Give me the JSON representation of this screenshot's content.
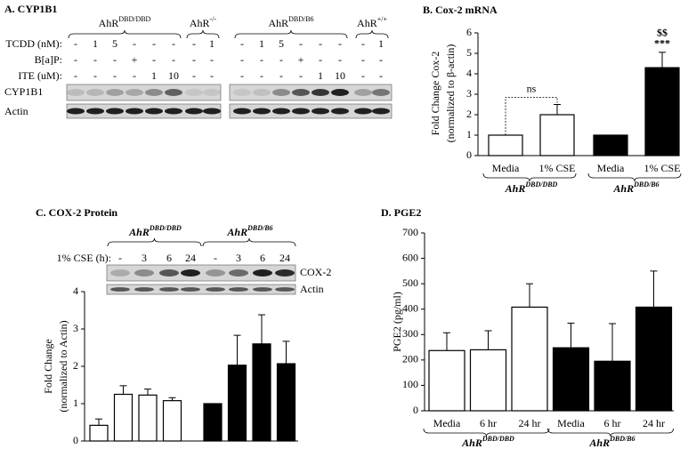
{
  "panel_a": {
    "title": "A. CYP1B1",
    "groups": [
      {
        "name": "AhR",
        "sup": "DBD/DBD"
      },
      {
        "name": "AhR",
        "sup": "-/-"
      },
      {
        "name": "AhR",
        "sup": "DBD/B6"
      },
      {
        "name": "AhR",
        "sup": "+/+"
      }
    ],
    "treatments": [
      {
        "label": "TCDD (nM):",
        "lanes": [
          "-",
          "1",
          "5",
          "-",
          "-",
          "-",
          "-",
          "1",
          "-",
          "1",
          "5",
          "-",
          "-",
          "-",
          "-",
          "1"
        ]
      },
      {
        "label": "B[a]P:",
        "lanes": [
          "-",
          "-",
          "-",
          "+",
          "-",
          "-",
          "-",
          "-",
          "-",
          "-",
          "-",
          "+",
          "-",
          "-",
          "-",
          "-"
        ]
      },
      {
        "label": "ITE (uM):",
        "lanes": [
          "-",
          "-",
          "-",
          "-",
          "1",
          "10",
          "-",
          "-",
          "-",
          "-",
          "-",
          "-",
          "1",
          "10",
          "-",
          "-"
        ]
      }
    ],
    "blots": [
      "CYP1B1",
      "Actin"
    ]
  },
  "chart_data": [
    {
      "type": "bar",
      "title": "B. Cox-2 mRNA",
      "ylabel": [
        "Fold Change Cox-2",
        "(normalized to β-actin)"
      ],
      "categories": [
        "Media",
        "1% CSE",
        "Media",
        "1% CSE"
      ],
      "values": [
        1,
        2.0,
        1,
        4.3
      ],
      "errors": [
        0,
        0.5,
        0,
        0.75
      ],
      "colors": [
        "#ffffff",
        "#ffffff",
        "#000000",
        "#000000"
      ],
      "groups": [
        {
          "name": "AhR",
          "sup": "DBD/DBD"
        },
        {
          "name": "AhR",
          "sup": "DBD/B6"
        }
      ],
      "annotations": [
        "ns",
        "$$",
        "***"
      ],
      "ylim": [
        0,
        6
      ],
      "yticks": [
        0,
        1,
        2,
        3,
        4,
        5,
        6
      ]
    },
    {
      "type": "bar",
      "title": "C. COX-2 Protein",
      "ylabel": [
        "Fold Change",
        "(normalized to Actin)"
      ],
      "lane_label": "1% CSE (h):",
      "categories": [
        "-",
        "3",
        "6",
        "24",
        "-",
        "3",
        "6",
        "24"
      ],
      "values": [
        0.42,
        1.25,
        1.23,
        1.08,
        1.0,
        2.03,
        2.6,
        2.07
      ],
      "errors": [
        0.17,
        0.23,
        0.16,
        0.08,
        0,
        0.8,
        0.78,
        0.6
      ],
      "colors": [
        "#ffffff",
        "#ffffff",
        "#ffffff",
        "#ffffff",
        "#000000",
        "#000000",
        "#000000",
        "#000000"
      ],
      "groups": [
        {
          "name": "AhR",
          "sup": "DBD/DBD"
        },
        {
          "name": "AhR",
          "sup": "DBD/B6"
        }
      ],
      "blots": [
        "COX-2",
        "Actin"
      ],
      "ylim": [
        0,
        4
      ],
      "yticks": [
        0,
        1,
        2,
        3,
        4
      ]
    },
    {
      "type": "bar",
      "title": "D. PGE2",
      "ylabel": [
        "PGE2 (pg/ml)"
      ],
      "categories": [
        "Media",
        "6 hr",
        "24 hr",
        "Media",
        "6 hr",
        "24 hr"
      ],
      "values": [
        237,
        240,
        408,
        248,
        195,
        408
      ],
      "errors": [
        70,
        75,
        92,
        97,
        148,
        142
      ],
      "colors": [
        "#ffffff",
        "#ffffff",
        "#ffffff",
        "#000000",
        "#000000",
        "#000000"
      ],
      "groups": [
        {
          "name": "AhR",
          "sup": "DBD/DBD"
        },
        {
          "name": "AhR",
          "sup": "DBD/B6"
        }
      ],
      "ylim": [
        0,
        700
      ],
      "yticks": [
        0,
        100,
        200,
        300,
        400,
        500,
        600,
        700
      ]
    }
  ]
}
